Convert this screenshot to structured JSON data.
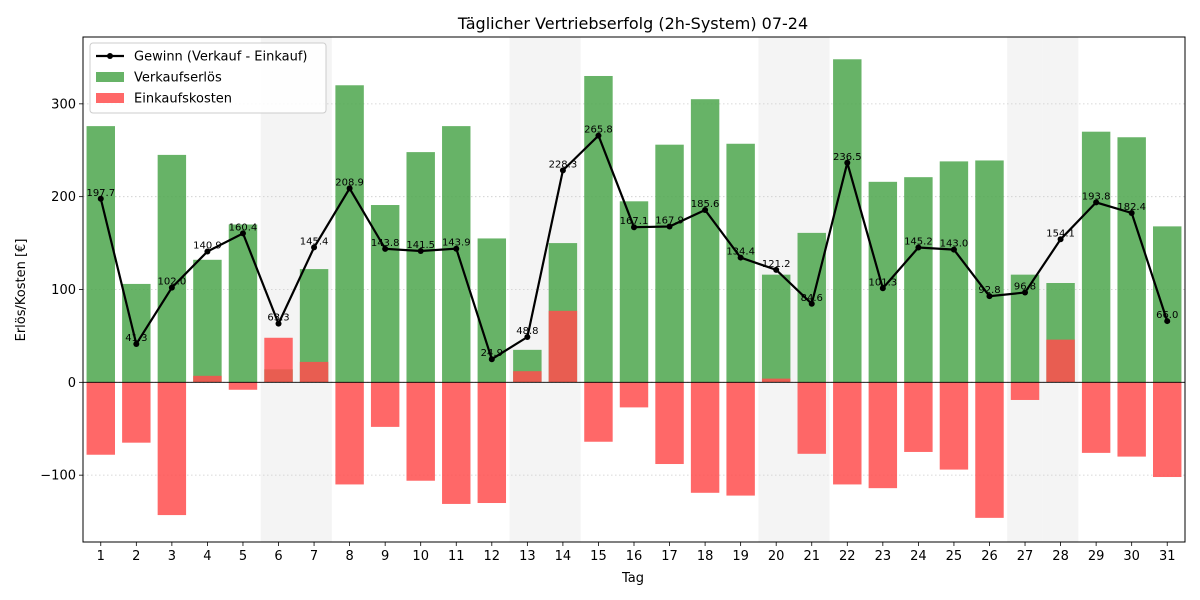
{
  "chart_data": {
    "type": "bar",
    "title": "Täglicher Vertriebserfolg (2h-System) 07-24",
    "xlabel": "Tag",
    "ylabel": "Erlös/Kosten [€]",
    "ylim": [
      -172,
      372
    ],
    "yticks": [
      -100,
      0,
      100,
      200,
      300
    ],
    "grid": "horizontal dotted",
    "legend_position": "top-left",
    "categories": [
      "1",
      "2",
      "3",
      "4",
      "5",
      "6",
      "7",
      "8",
      "9",
      "10",
      "11",
      "12",
      "13",
      "14",
      "15",
      "16",
      "17",
      "18",
      "19",
      "20",
      "21",
      "22",
      "23",
      "24",
      "25",
      "26",
      "27",
      "28",
      "29",
      "30",
      "31"
    ],
    "weekend_shading": [
      6,
      7,
      13,
      14,
      20,
      21,
      27,
      28
    ],
    "colors": {
      "revenue": "#4ca64c",
      "cost": "#ff4d4d",
      "profit": "#000000",
      "weekend": "#e6e6e6"
    },
    "series": [
      {
        "name": "Verkaufserlös",
        "kind": "bar",
        "values": [
          276,
          106,
          245,
          132,
          170,
          14,
          122,
          320,
          191,
          248,
          276,
          155,
          35,
          150,
          330,
          195,
          256,
          305,
          257,
          116,
          161,
          348,
          216,
          221,
          238,
          239,
          116,
          107,
          270,
          264,
          168
        ]
      },
      {
        "name": "Einkaufskosten",
        "kind": "bar",
        "values": [
          -78,
          -65,
          -143,
          7,
          -8,
          48,
          22,
          -110,
          -48,
          -106,
          -131,
          -130,
          12,
          77,
          -64,
          -27,
          -88,
          -119,
          -122,
          4,
          -77,
          -110,
          -114,
          -75,
          -94,
          -146,
          -19,
          46,
          -76,
          -80,
          -102
        ]
      },
      {
        "name": "Gewinn (Verkauf - Einkauf)",
        "kind": "line",
        "values": [
          197.7,
          41.3,
          102.0,
          140.9,
          160.4,
          63.3,
          145.4,
          208.9,
          143.8,
          141.5,
          143.9,
          24.9,
          48.8,
          228.3,
          265.8,
          167.1,
          167.9,
          185.6,
          134.4,
          121.2,
          84.6,
          236.5,
          101.3,
          145.2,
          143.0,
          92.8,
          96.8,
          154.1,
          193.8,
          182.4,
          66.0
        ],
        "labels": [
          "197.7",
          "41.3",
          "102.0",
          "140.9",
          "160.4",
          "63.3",
          "145.4",
          "208.9",
          "143.8",
          "141.5",
          "143.9",
          "24.9",
          "48.8",
          "228.3",
          "265.8",
          "167.1",
          "167.9",
          "185.6",
          "134.4",
          "121.2",
          "84.6",
          "236.5",
          "101.3",
          "145.2",
          "143.0",
          "92.8",
          "96.8",
          "154.1",
          "193.8",
          "182.4",
          "66.0"
        ]
      }
    ]
  }
}
